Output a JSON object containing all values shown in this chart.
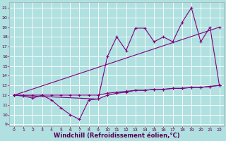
{
  "bg_color": "#b0e0e0",
  "grid_color": "#ffffff",
  "line_color": "#800080",
  "xlabel": "Windchill (Refroidissement éolien,°C)",
  "xlabel_fontsize": 6.0,
  "ylabel_ticks": [
    9,
    10,
    11,
    12,
    13,
    14,
    15,
    16,
    17,
    18,
    19,
    20,
    21
  ],
  "xlabel_ticks": [
    0,
    1,
    2,
    3,
    4,
    5,
    6,
    7,
    8,
    9,
    10,
    11,
    12,
    13,
    14,
    15,
    16,
    17,
    18,
    19,
    20,
    21,
    22
  ],
  "xlim": [
    -0.5,
    22.5
  ],
  "ylim": [
    8.8,
    21.6
  ],
  "line1_x": [
    0,
    1,
    2,
    3,
    4,
    5,
    6,
    7,
    8,
    9,
    10,
    11,
    12,
    13,
    14,
    15,
    16,
    17,
    18,
    19,
    20,
    21,
    22
  ],
  "line1_y": [
    12.0,
    11.9,
    11.7,
    12.0,
    11.5,
    10.7,
    10.0,
    9.5,
    11.5,
    11.6,
    12.0,
    12.2,
    12.3,
    12.5,
    12.5,
    12.6,
    12.6,
    12.7,
    12.7,
    12.8,
    12.8,
    12.9,
    13.0
  ],
  "line2_x": [
    0,
    1,
    2,
    3,
    4,
    5,
    6,
    7,
    8,
    9,
    10,
    11,
    12,
    13,
    14,
    15,
    16,
    17,
    18,
    19,
    20,
    21,
    22
  ],
  "line2_y": [
    12.0,
    12.0,
    12.0,
    12.0,
    12.0,
    12.0,
    12.0,
    12.0,
    12.0,
    12.0,
    12.2,
    12.3,
    12.4,
    12.5,
    12.5,
    12.6,
    12.6,
    12.7,
    12.7,
    12.8,
    12.8,
    12.9,
    13.0
  ],
  "line3_x": [
    0,
    22
  ],
  "line3_y": [
    12.0,
    19.0
  ],
  "line4_x": [
    0,
    9,
    10,
    11,
    12,
    13,
    14,
    15,
    16,
    17,
    18,
    19,
    20,
    21,
    22
  ],
  "line4_y": [
    12.0,
    11.6,
    16.0,
    18.0,
    16.6,
    18.9,
    18.9,
    17.5,
    18.0,
    17.5,
    19.5,
    21.0,
    17.5,
    19.0,
    13.0
  ]
}
